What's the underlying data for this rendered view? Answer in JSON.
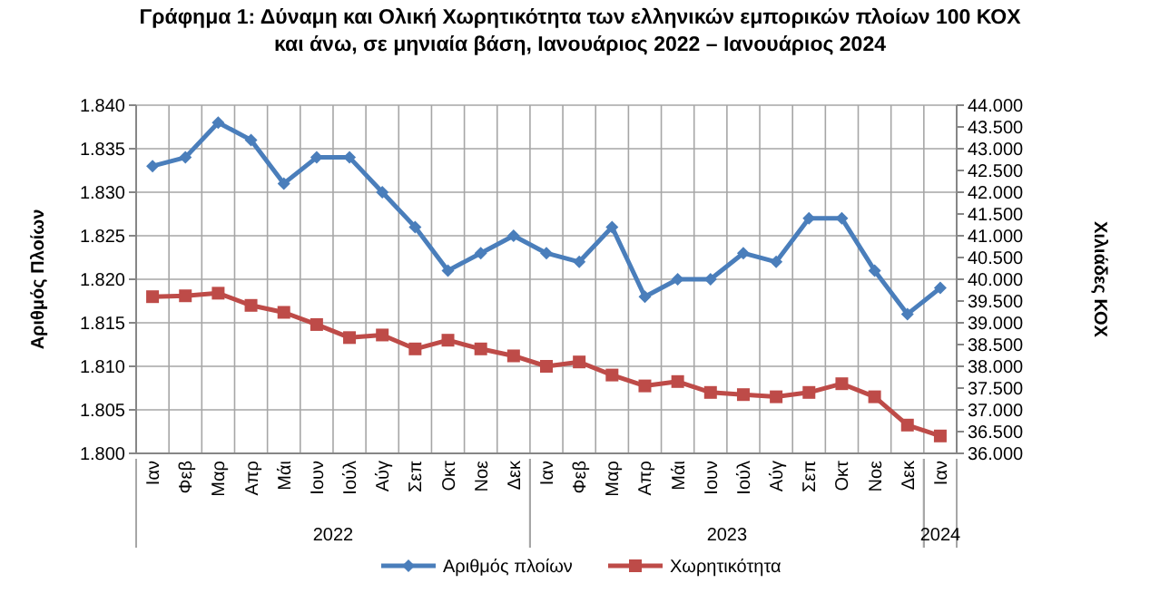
{
  "chart_data": {
    "type": "line",
    "title": "Γράφημα 1: Δύναμη και Ολική Χωρητικότητα των ελληνικών εμπορικών πλοίων 100 ΚΟΧ και άνω, σε μηνιαία βάση, Ιανουάριος 2022 – Ιανουάριος 2024",
    "categories": [
      "Ιαν",
      "Φεβ",
      "Μαρ",
      "Απρ",
      "Μάι",
      "Ιουν",
      "Ιούλ",
      "Αύγ",
      "Σεπ",
      "Οκτ",
      "Νοε",
      "Δεκ",
      "Ιαν",
      "Φεβ",
      "Μαρ",
      "Απρ",
      "Μάι",
      "Ιουν",
      "Ιούλ",
      "Αύγ",
      "Σεπ",
      "Οκτ",
      "Νοε",
      "Δεκ",
      "Ιαν"
    ],
    "annotations": [
      "2022",
      "2023",
      "2024"
    ],
    "ylabel": "Αριθμός Πλοίων",
    "y2label": "Χιλιάδες ΚΟΧ",
    "ylim": [
      1800,
      1840
    ],
    "yticks": [
      {
        "value": 1800,
        "label": "1.800"
      },
      {
        "value": 1805,
        "label": "1.805"
      },
      {
        "value": 1810,
        "label": "1.810"
      },
      {
        "value": 1815,
        "label": "1.815"
      },
      {
        "value": 1820,
        "label": "1.820"
      },
      {
        "value": 1825,
        "label": "1.825"
      },
      {
        "value": 1830,
        "label": "1.830"
      },
      {
        "value": 1835,
        "label": "1.835"
      },
      {
        "value": 1840,
        "label": "1.840"
      }
    ],
    "y2lim": [
      36000,
      44000
    ],
    "y2ticks": [
      {
        "value": 36000,
        "label": "36.000"
      },
      {
        "value": 36500,
        "label": "36.500"
      },
      {
        "value": 37000,
        "label": "37.000"
      },
      {
        "value": 37500,
        "label": "37.500"
      },
      {
        "value": 38000,
        "label": "38.000"
      },
      {
        "value": 38500,
        "label": "38.500"
      },
      {
        "value": 39000,
        "label": "39.000"
      },
      {
        "value": 39500,
        "label": "39.500"
      },
      {
        "value": 40000,
        "label": "40.000"
      },
      {
        "value": 40500,
        "label": "40.500"
      },
      {
        "value": 41000,
        "label": "41.000"
      },
      {
        "value": 41500,
        "label": "41.500"
      },
      {
        "value": 42000,
        "label": "42.000"
      },
      {
        "value": 42500,
        "label": "42.500"
      },
      {
        "value": 43000,
        "label": "43.000"
      },
      {
        "value": 43500,
        "label": "43.500"
      },
      {
        "value": 44000,
        "label": "44.000"
      }
    ],
    "grid": true,
    "legend": "bottom",
    "series": [
      {
        "name": "Αριθμός πλοίων",
        "color": "#4a7ebb",
        "marker": "diamond",
        "values": [
          1833,
          1834,
          1838,
          1836,
          1831,
          1834,
          1834,
          1830,
          1826,
          1821,
          1823,
          1825,
          1823,
          1822,
          1826,
          1818,
          1820,
          1820,
          1823,
          1822,
          1827,
          1827,
          1821,
          1816,
          1819
        ]
      },
      {
        "name": "Χωρητικότητα",
        "color": "#be4b48",
        "marker": "square",
        "axis": "y2",
        "values": [
          39600,
          39620,
          39680,
          39400,
          39240,
          38960,
          38660,
          38720,
          38400,
          38600,
          38400,
          38240,
          38000,
          38100,
          37800,
          37550,
          37650,
          37400,
          37350,
          37300,
          37400,
          37600,
          37300,
          36650,
          36400
        ]
      }
    ]
  }
}
